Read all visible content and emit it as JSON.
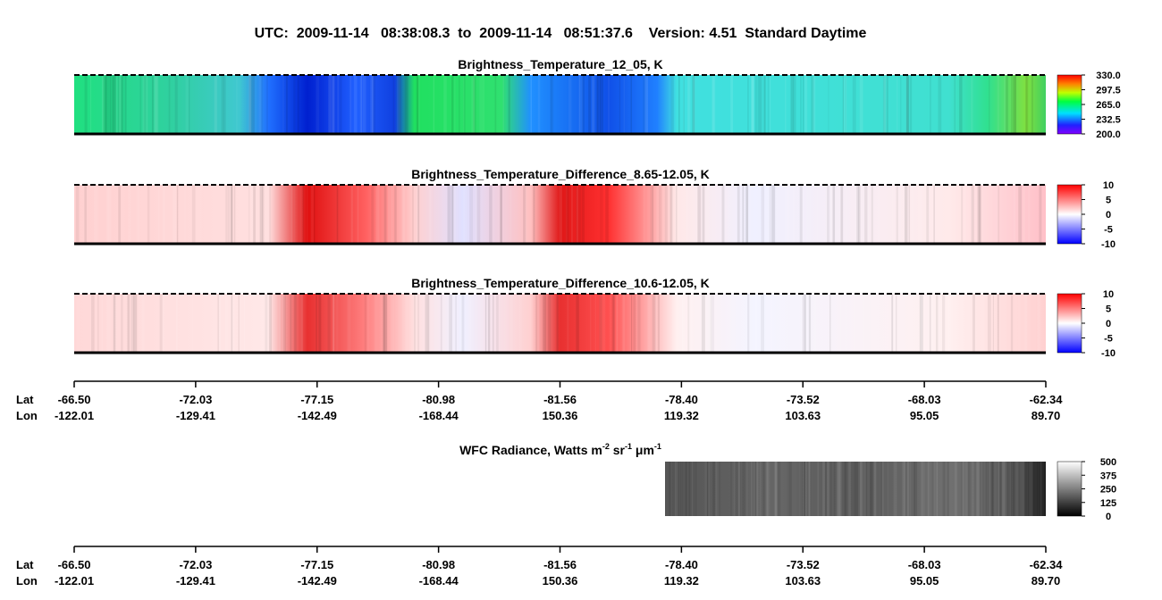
{
  "title": "UTC:  2009-11-14   08:38:08.3  to  2009-11-14   08:51:37.6    Version: 4.51  Standard Daytime",
  "panels": [
    {
      "title": "Brightness_Temperature_12_05, K",
      "colorbar_labels": [
        "330.0",
        "297.5",
        "265.0",
        "232.5",
        "200.0"
      ]
    },
    {
      "title": "Brightness_Temperature_Difference_8.65-12.05, K",
      "colorbar_labels": [
        "10",
        "5",
        "0",
        "-5",
        "-10"
      ]
    },
    {
      "title": "Brightness_Temperature_Difference_10.6-12.05, K",
      "colorbar_labels": [
        "10",
        "5",
        "0",
        "-5",
        "-10"
      ]
    }
  ],
  "wfc": {
    "title_parts": [
      "WFC Radiance, Watts m",
      "-2",
      " sr",
      "-1",
      " μm",
      "-1"
    ],
    "colorbar_labels": [
      "500",
      "375",
      "250",
      "125",
      "0"
    ]
  },
  "track": {
    "lat_name": "Lat",
    "lon_name": "Lon",
    "lat": [
      "-66.50",
      "-72.03",
      "-77.15",
      "-80.98",
      "-81.56",
      "-78.40",
      "-73.52",
      "-68.03",
      "-62.34"
    ],
    "lon": [
      "-122.01",
      "-129.41",
      "-142.49",
      "-168.44",
      "150.36",
      "119.32",
      "103.63",
      "95.05",
      "89.70"
    ]
  }
}
